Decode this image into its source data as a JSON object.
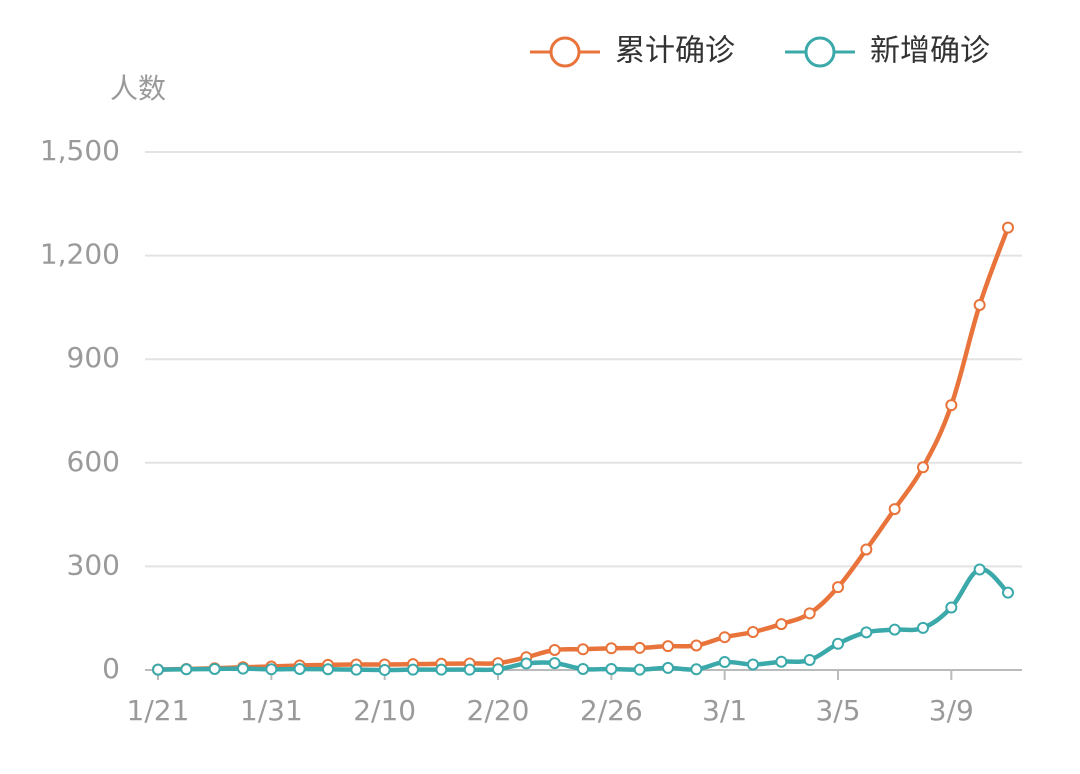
{
  "chart_data": {
    "type": "line",
    "y_label": "人数",
    "categories": [
      "1/21",
      null,
      null,
      null,
      "1/31",
      null,
      null,
      null,
      "2/10",
      null,
      null,
      null,
      "2/20",
      null,
      null,
      null,
      "2/26",
      null,
      null,
      null,
      "3/1",
      null,
      null,
      null,
      "3/5",
      null,
      null,
      null,
      "3/9",
      null,
      null
    ],
    "series": [
      {
        "name": "累计确诊",
        "color": "#e8743b",
        "values": [
          1,
          3,
          5,
          8,
          10,
          13,
          15,
          16,
          16,
          17,
          18,
          19,
          20,
          37,
          58,
          60,
          63,
          64,
          69,
          71,
          95,
          110,
          133,
          164,
          240,
          349,
          466,
          587,
          767,
          1057,
          1281
        ]
      },
      {
        "name": "新增确诊",
        "color": "#3ba8aa",
        "values": [
          1,
          2,
          3,
          4,
          2,
          3,
          2,
          1,
          0,
          1,
          1,
          1,
          2,
          19,
          20,
          3,
          3,
          1,
          6,
          2,
          23,
          16,
          24,
          29,
          76,
          109,
          117,
          122,
          181,
          291,
          224
        ]
      }
    ],
    "ylim": [
      0,
      1500
    ],
    "yticks": [
      0,
      300,
      600,
      900,
      {
        "value": 1200,
        "label": "1,200"
      },
      {
        "value": 1500,
        "label": "1,500"
      }
    ],
    "grid": true,
    "legend": "top-right"
  }
}
